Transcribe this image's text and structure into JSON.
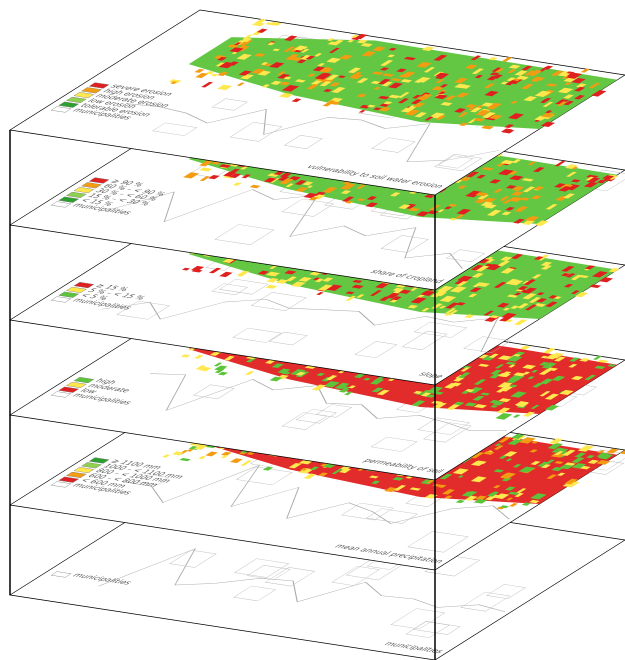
{
  "layers": [
    {
      "title": "vulnerability to soil water erosion",
      "legend": [
        "municipalities",
        "tolerable erosion",
        "low erosion",
        "moderate erosion",
        "high erosion",
        "severe erosion"
      ]
    },
    {
      "title": "share of cropland",
      "legend": [
        "municipalities",
        "< 15 %",
        "15 % – < 30 %",
        "30 % – < 60 %",
        "60 % – < 90 %",
        "≥ 90 %"
      ]
    },
    {
      "title": "slope",
      "legend": [
        "municipalities",
        "< 5 %",
        "5 % – < 15 %",
        "≥ 15 %"
      ]
    },
    {
      "title": "permeability of soil",
      "legend": [
        "municipalities",
        "low",
        "moderate",
        "high"
      ]
    },
    {
      "title": "mean annual precipitation",
      "legend": [
        "municipalities",
        "< 600 mm",
        "600 – < 800 mm",
        "800 – < 1000 mm",
        "1000 – < 1100 mm",
        "≥ 1100 mm"
      ]
    },
    {
      "title": "municipalities",
      "legend": [
        "municipalities"
      ]
    }
  ]
}
